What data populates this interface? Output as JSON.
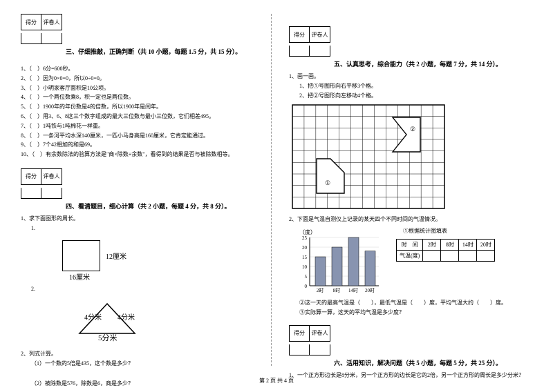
{
  "scorebox": {
    "left": "得分",
    "right": "评卷人"
  },
  "sec3": {
    "title": "三、仔细推敲，正确判断（共 10 小题，每题 1.5 分，共 15 分）。",
    "items": [
      "1、（　）6分=600秒。",
      "2、（　）因为0×0=0，所以0÷0=0。",
      "3、（　）小明家客厅面积是10公顷。",
      "4、（　）一个两位数乘8，积一定也是两位数。",
      "5、（　）1900年的年份数是4的倍数，所以1900年是闰年。",
      "6、（　）用3、6、8这三个数字组成的最大三位数与最小三位数，它们相差495。",
      "7、（　）1吨铁与1吨棉花一样重。",
      "8、（　）一条河平均水深140厘米，一匹小马身高是160厘米，它肯定能通过。",
      "9、（　）7个42相加的和是69。",
      "10、（　）有余数除法的验算方法是\"商×除数+余数\"，看得到的结果是否与被除数相等。"
    ]
  },
  "sec4": {
    "title": "四、看清题目，细心计算（共 2 小题，每题 4 分，共 8 分）。",
    "q1": "1、求下面图形的周长。",
    "q1_1": "1.",
    "rect_w": "16厘米",
    "rect_h": "12厘米",
    "q1_2": "2.",
    "tri_l": "4分米",
    "tri_r": "4分米",
    "tri_b": "5分米",
    "q2": "2、列式计算。",
    "q2_1": "（1）一个数的5倍是435，这个数是多少？",
    "q2_2": "（2）被除数是576，除数是6，商是多少？"
  },
  "sec5": {
    "title": "五、认真思考，综合能力（共 2 小题，每题 7 分，共 14 分）。",
    "q1": "1、画一画。",
    "q1_1": "1、把①号图形向右平移3个格。",
    "q1_2": "2、把②号图形向左移动4个格。",
    "mark1": "①",
    "mark2": "②",
    "q2": "2、下面是气温自测仪上记录的某天四个不同时间的气温情况。",
    "chart": {
      "ylabel": "（度）",
      "title": "①根据统计图填表",
      "yticks": [
        "25",
        "20",
        "15",
        "10",
        "5",
        "0"
      ],
      "xticks": [
        "2时",
        "8时",
        "14时",
        "20时"
      ],
      "bars": [
        15,
        20,
        25,
        18
      ],
      "bar_color": "#8894b0",
      "ymax": 25
    },
    "table": {
      "r1": [
        "时　间",
        "2时",
        "8时",
        "14时",
        "20时"
      ],
      "r2": [
        "气温(度)",
        "",
        "",
        "",
        ""
      ]
    },
    "q2_b": "②这一天的最高气温是（　　），最低气温是（　　）度，平均气温大约（　　）度。",
    "q2_c": "③实际算一算，这天的平均气温是多少度？"
  },
  "sec6": {
    "title": "六、活用知识，解决问题（共 5 小题，每题 5 分，共 25 分）。",
    "q1": "1、一个正方形边长是8分米，另一个正方形的边长是它的2倍，另一个正方形的周长是多少分米？"
  },
  "footer": "第 2 页 共 4 页"
}
